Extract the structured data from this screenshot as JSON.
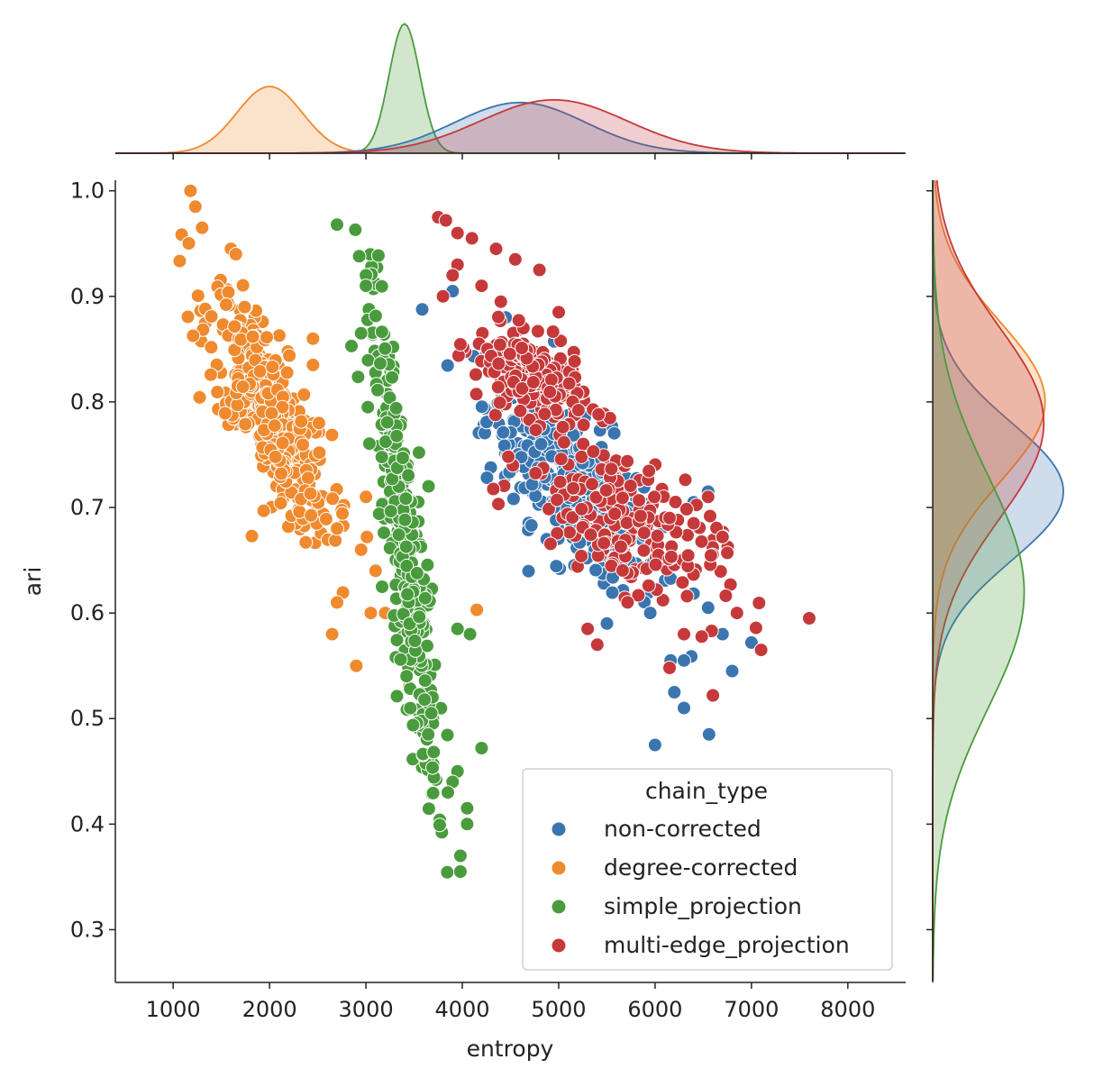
{
  "chart_data": {
    "type": "scatter",
    "title": "",
    "xlabel": "entropy",
    "ylabel": "ari",
    "xlim": [
      400,
      8600
    ],
    "ylim": [
      0.25,
      1.01
    ],
    "x_ticks": [
      "1000",
      "2000",
      "3000",
      "4000",
      "5000",
      "6000",
      "7000",
      "8000"
    ],
    "y_ticks": [
      "0.3",
      "0.4",
      "0.5",
      "0.6",
      "0.7",
      "0.8",
      "0.9",
      "1.0"
    ],
    "grid": false,
    "legend": {
      "title": "chain_type",
      "placement": "lower-right"
    },
    "marginals": {
      "top": "kde of entropy by chain_type",
      "right": "kde of ari by chain_type"
    },
    "series": [
      {
        "name": "non-corrected",
        "color": "#3a75b0",
        "clusters": [
          {
            "n": 380,
            "x_mean": 5150,
            "y_mean": 0.725,
            "x_sd": 450,
            "y_sd": 0.065,
            "slope": -7.75e-05
          }
        ],
        "points": [
          [
            4450,
            0.88
          ],
          [
            3900,
            0.905
          ],
          [
            4300,
            0.845
          ],
          [
            6000,
            0.475
          ],
          [
            6560,
            0.485
          ],
          [
            6300,
            0.51
          ],
          [
            6800,
            0.545
          ],
          [
            7000,
            0.572
          ],
          [
            6700,
            0.58
          ],
          [
            6550,
            0.605
          ],
          [
            6200,
            0.525
          ],
          [
            6300,
            0.555
          ],
          [
            6550,
            0.715
          ],
          [
            6400,
            0.705
          ],
          [
            5950,
            0.6
          ],
          [
            5500,
            0.59
          ]
        ]
      },
      {
        "name": "degree-corrected",
        "color": "#ef8a2f",
        "clusters": [
          {
            "n": 390,
            "x_mean": 2000,
            "y_mean": 0.79,
            "x_sd": 320,
            "y_sd": 0.065,
            "slope": -0.000145
          }
        ],
        "points": [
          [
            1180,
            1.0
          ],
          [
            1230,
            0.985
          ],
          [
            1300,
            0.965
          ],
          [
            1600,
            0.945
          ],
          [
            1650,
            0.94
          ],
          [
            2450,
            0.86
          ],
          [
            2450,
            0.835
          ],
          [
            2700,
            0.68
          ],
          [
            2950,
            0.66
          ],
          [
            2700,
            0.61
          ],
          [
            2650,
            0.58
          ],
          [
            2900,
            0.55
          ],
          [
            3050,
            0.6
          ],
          [
            3200,
            0.6
          ],
          [
            3100,
            0.64
          ],
          [
            4150,
            0.603
          ],
          [
            3450,
            0.53
          ],
          [
            3000,
            0.71
          ]
        ]
      },
      {
        "name": "simple_projection",
        "color": "#4a9b3d",
        "clusters": [
          {
            "n": 330,
            "x_mean": 3400,
            "y_mean": 0.66,
            "x_sd": 170,
            "y_sd": 0.105,
            "slope": -0.00055
          }
        ],
        "points": [
          [
            2700,
            0.968
          ],
          [
            2930,
            0.938
          ],
          [
            3000,
            0.92
          ],
          [
            3000,
            0.91
          ],
          [
            3550,
            0.752
          ],
          [
            3650,
            0.72
          ],
          [
            3950,
            0.585
          ],
          [
            4080,
            0.58
          ],
          [
            4200,
            0.472
          ],
          [
            4050,
            0.4
          ],
          [
            4050,
            0.415
          ],
          [
            3980,
            0.37
          ],
          [
            3980,
            0.355
          ],
          [
            3950,
            0.45
          ],
          [
            3900,
            0.44
          ],
          [
            3850,
            0.43
          ],
          [
            2950,
            0.865
          ],
          [
            2850,
            0.853
          ]
        ]
      },
      {
        "name": "multi-edge_projection",
        "color": "#c5393a",
        "clusters": [
          {
            "n": 240,
            "x_mean": 4700,
            "y_mean": 0.825,
            "x_sd": 280,
            "y_sd": 0.032,
            "slope": -4e-05
          },
          {
            "n": 200,
            "x_mean": 5650,
            "y_mean": 0.69,
            "x_sd": 500,
            "y_sd": 0.06,
            "slope": -5e-05
          }
        ],
        "points": [
          [
            3750,
            0.975
          ],
          [
            3830,
            0.972
          ],
          [
            3950,
            0.96
          ],
          [
            4100,
            0.955
          ],
          [
            4350,
            0.945
          ],
          [
            4550,
            0.935
          ],
          [
            4800,
            0.925
          ],
          [
            3950,
            0.93
          ],
          [
            3900,
            0.92
          ],
          [
            3800,
            0.9
          ],
          [
            4200,
            0.91
          ],
          [
            5000,
            0.885
          ],
          [
            4400,
            0.895
          ],
          [
            6400,
            0.685
          ],
          [
            6700,
            0.672
          ],
          [
            6750,
            0.657
          ],
          [
            6550,
            0.71
          ],
          [
            6150,
            0.69
          ],
          [
            6850,
            0.6
          ],
          [
            7100,
            0.565
          ],
          [
            7600,
            0.595
          ],
          [
            6600,
            0.522
          ],
          [
            6150,
            0.548
          ],
          [
            6300,
            0.58
          ],
          [
            5400,
            0.57
          ],
          [
            5300,
            0.585
          ]
        ]
      }
    ],
    "marginal_x_kde": [
      {
        "name": "degree-corrected",
        "peak_x": 2000,
        "sd": 340,
        "rel_height": 0.5
      },
      {
        "name": "simple_projection",
        "peak_x": 3400,
        "sd": 160,
        "rel_height": 0.97
      },
      {
        "name": "non-corrected",
        "peak_x": 4600,
        "sd": 680,
        "rel_height": 0.38
      },
      {
        "name": "multi-edge_projection",
        "peak_x": 4950,
        "sd": 760,
        "rel_height": 0.4
      }
    ],
    "marginal_y_kde": [
      {
        "name": "non-corrected",
        "peak_y": 0.715,
        "sd": 0.065,
        "rel_width": 1.0
      },
      {
        "name": "degree-corrected",
        "peak_y": 0.8,
        "sd": 0.075,
        "rel_width": 0.86
      },
      {
        "name": "multi-edge_projection",
        "peak_y": 0.78,
        "sd": 0.09,
        "rel_width": 0.85
      },
      {
        "name": "simple_projection",
        "peak_y": 0.62,
        "sd": 0.11,
        "rel_width": 0.7
      }
    ]
  }
}
